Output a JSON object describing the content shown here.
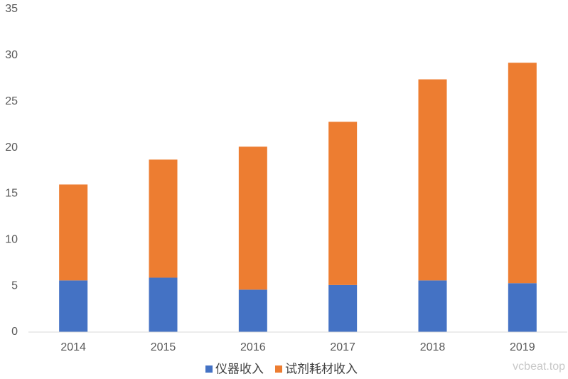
{
  "chart_data": {
    "type": "stacked_bar",
    "categories": [
      "2014",
      "2015",
      "2016",
      "2017",
      "2018",
      "2019"
    ],
    "series": [
      {
        "name": "仪器收入",
        "color": "#4472c4",
        "values": [
          5.6,
          5.9,
          4.6,
          5.1,
          5.6,
          5.3
        ]
      },
      {
        "name": "试剂耗材收入",
        "color": "#ed7d31",
        "values": [
          10.4,
          12.8,
          15.5,
          17.7,
          21.8,
          23.9
        ]
      }
    ],
    "ylim": [
      0,
      35
    ],
    "yticks": [
      0,
      5,
      10,
      15,
      20,
      25,
      30,
      35
    ],
    "grid": false,
    "legend": "bottom",
    "watermark": "vcbeat.top"
  }
}
